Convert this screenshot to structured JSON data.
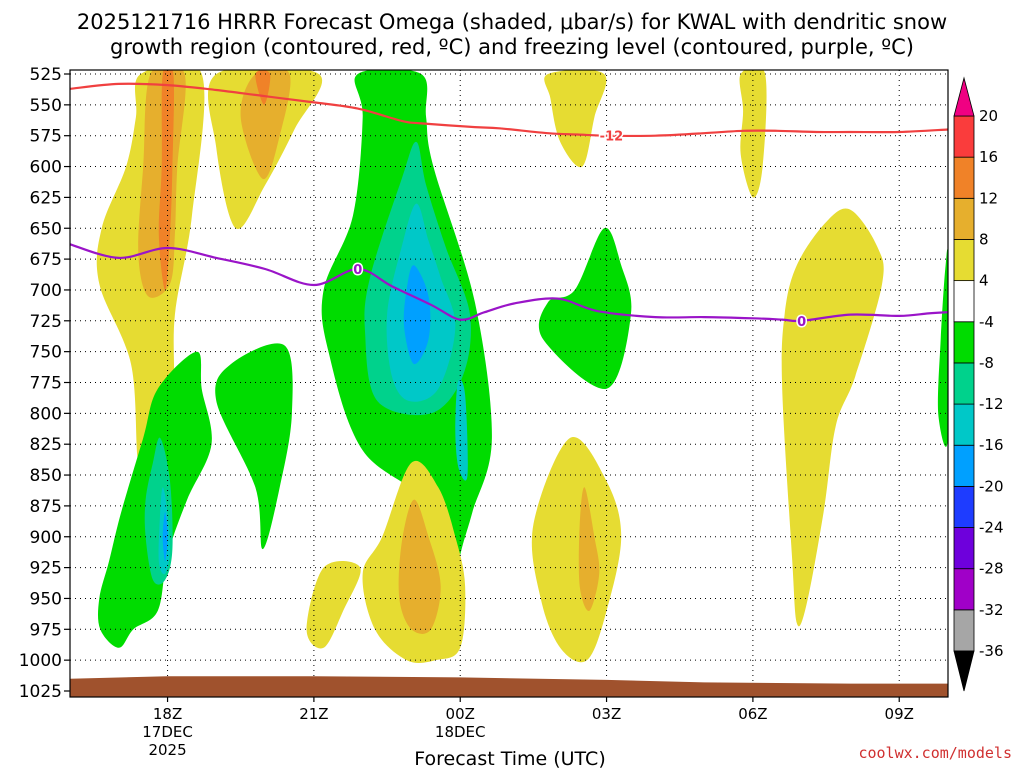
{
  "chart_data": {
    "type": "heatmap",
    "title_line1": "2025121716 HRRR Forecast Omega (shaded, μbar/s) for KWAL with dendritic snow",
    "title_line2": "growth region (contoured, red, ºC) and freezing level (contoured, purple, ºC)",
    "xlabel": "Forecast Time (UTC)",
    "credit": "coolwx.com/models",
    "xlim_hours": [
      0,
      18
    ],
    "ylim_hpa": [
      525,
      1025
    ],
    "y_ticks": [
      525,
      550,
      575,
      600,
      625,
      650,
      675,
      700,
      725,
      750,
      775,
      800,
      825,
      850,
      875,
      900,
      925,
      950,
      975,
      1000,
      1025
    ],
    "x_ticks": [
      {
        "hour": 2,
        "lines": [
          "18Z",
          "17DEC",
          "2025"
        ]
      },
      {
        "hour": 5,
        "lines": [
          "21Z"
        ]
      },
      {
        "hour": 8,
        "lines": [
          "00Z",
          "18DEC"
        ]
      },
      {
        "hour": 11,
        "lines": [
          "03Z"
        ]
      },
      {
        "hour": 14,
        "lines": [
          "06Z"
        ]
      },
      {
        "hour": 17,
        "lines": [
          "09Z"
        ]
      }
    ],
    "colorbar": {
      "levels": [
        -36,
        -32,
        -28,
        -24,
        -20,
        -16,
        -12,
        -8,
        -4,
        4,
        8,
        12,
        16,
        20
      ],
      "colors": [
        "#a6a6a6",
        "#a000c8",
        "#6e00dc",
        "#1e3cff",
        "#00a0ff",
        "#00c8c8",
        "#00d28c",
        "#00dc00",
        "#ffffff",
        "#e6dc32",
        "#e6af2d",
        "#f08228",
        "#fa3c3c",
        "#f00082"
      ],
      "under_color": "#000000",
      "over_color": "#f00082"
    },
    "omega_regions": [
      {
        "value": 4,
        "color": "#e6dc32",
        "points": [
          [
            1.45,
            525
          ],
          [
            2.7,
            525
          ],
          [
            2.5,
            640
          ],
          [
            2.15,
            720
          ],
          [
            2.1,
            790
          ],
          [
            1.65,
            835
          ],
          [
            1.4,
            840
          ],
          [
            1.25,
            760
          ],
          [
            0.6,
            695
          ],
          [
            0.65,
            650
          ],
          [
            1.15,
            600
          ],
          [
            1.35,
            560
          ]
        ]
      },
      {
        "value": 8,
        "color": "#e6af2d",
        "points": [
          [
            1.65,
            525
          ],
          [
            2.35,
            525
          ],
          [
            2.2,
            600
          ],
          [
            2.15,
            655
          ],
          [
            2.05,
            695
          ],
          [
            1.6,
            705
          ],
          [
            1.4,
            670
          ],
          [
            1.5,
            600
          ]
        ]
      },
      {
        "value": 12,
        "color": "#f08228",
        "points": [
          [
            1.9,
            525
          ],
          [
            2.12,
            525
          ],
          [
            2.1,
            600
          ],
          [
            2.05,
            655
          ],
          [
            1.95,
            700
          ],
          [
            1.82,
            655
          ],
          [
            1.88,
            600
          ]
        ]
      },
      {
        "value": 4,
        "color": "#e6dc32",
        "points": [
          [
            3.0,
            525
          ],
          [
            5.1,
            525
          ],
          [
            4.6,
            570
          ],
          [
            4.0,
            615
          ],
          [
            3.4,
            650
          ],
          [
            3.0,
            585
          ]
        ]
      },
      {
        "value": 8,
        "color": "#e6af2d",
        "points": [
          [
            3.8,
            525
          ],
          [
            4.5,
            525
          ],
          [
            4.3,
            575
          ],
          [
            3.95,
            610
          ],
          [
            3.5,
            560
          ]
        ]
      },
      {
        "value": 12,
        "color": "#f08228",
        "points": [
          [
            3.8,
            525
          ],
          [
            4.1,
            525
          ],
          [
            3.98,
            550
          ]
        ]
      },
      {
        "value": -4,
        "color": "#00dc00",
        "points": [
          [
            5.9,
            525
          ],
          [
            7.2,
            525
          ],
          [
            7.3,
            560
          ],
          [
            7.45,
            600
          ],
          [
            8.3,
            710
          ],
          [
            8.65,
            820
          ],
          [
            8.25,
            880
          ],
          [
            8.0,
            915
          ],
          [
            7.8,
            960
          ],
          [
            7.5,
            880
          ],
          [
            6.0,
            830
          ],
          [
            5.3,
            750
          ],
          [
            5.2,
            700
          ],
          [
            5.8,
            640
          ],
          [
            6.0,
            560
          ]
        ]
      },
      {
        "value": -8,
        "color": "#00d28c",
        "points": [
          [
            6.8,
            610
          ],
          [
            7.1,
            580
          ],
          [
            7.3,
            615
          ],
          [
            7.7,
            665
          ],
          [
            8.2,
            720
          ],
          [
            8.05,
            770
          ],
          [
            7.4,
            800
          ],
          [
            6.3,
            790
          ],
          [
            6.05,
            735
          ],
          [
            6.15,
            690
          ]
        ]
      },
      {
        "value": -12,
        "color": "#00c8c8",
        "points": [
          [
            7.1,
            630
          ],
          [
            7.35,
            660
          ],
          [
            7.6,
            690
          ],
          [
            7.9,
            730
          ],
          [
            7.55,
            780
          ],
          [
            6.95,
            790
          ],
          [
            6.6,
            770
          ],
          [
            6.5,
            720
          ],
          [
            6.8,
            665
          ]
        ]
      },
      {
        "value": -16,
        "color": "#00a0ff",
        "points": [
          [
            7.05,
            680
          ],
          [
            7.35,
            705
          ],
          [
            7.35,
            740
          ],
          [
            7.05,
            760
          ],
          [
            6.85,
            730
          ],
          [
            6.9,
            700
          ]
        ]
      },
      {
        "value": -12,
        "color": "#00c8c8",
        "points": [
          [
            7.95,
            775
          ],
          [
            8.1,
            785
          ],
          [
            8.15,
            850
          ],
          [
            7.97,
            845
          ],
          [
            7.9,
            815
          ]
        ]
      },
      {
        "value": -4,
        "color": "#00dc00",
        "points": [
          [
            1.8,
            780
          ],
          [
            2.6,
            750
          ],
          [
            2.7,
            780
          ],
          [
            2.9,
            825
          ],
          [
            2.4,
            870
          ],
          [
            2.0,
            915
          ],
          [
            1.8,
            960
          ],
          [
            1.3,
            975
          ],
          [
            1.0,
            990
          ],
          [
            0.62,
            975
          ],
          [
            0.6,
            950
          ],
          [
            0.8,
            920
          ],
          [
            1.05,
            880
          ],
          [
            1.5,
            820
          ]
        ]
      },
      {
        "value": -4,
        "color": "#00dc00",
        "points": [
          [
            3.3,
            760
          ],
          [
            4.4,
            745
          ],
          [
            4.55,
            800
          ],
          [
            4.3,
            860
          ],
          [
            3.95,
            910
          ],
          [
            3.8,
            860
          ],
          [
            3.0,
            790
          ]
        ]
      },
      {
        "value": -8,
        "color": "#00d28c",
        "points": [
          [
            1.7,
            840
          ],
          [
            1.85,
            820
          ],
          [
            2.05,
            855
          ],
          [
            2.1,
            910
          ],
          [
            1.95,
            935
          ],
          [
            1.7,
            935
          ],
          [
            1.55,
            900
          ],
          [
            1.55,
            870
          ]
        ]
      },
      {
        "value": -12,
        "color": "#00c8c8",
        "points": [
          [
            1.9,
            860
          ],
          [
            1.98,
            875
          ],
          [
            2.05,
            910
          ],
          [
            1.95,
            930
          ],
          [
            1.82,
            920
          ],
          [
            1.85,
            880
          ]
        ]
      },
      {
        "value": -16,
        "color": "#00a0ff",
        "points": [
          [
            1.95,
            880
          ],
          [
            2.0,
            900
          ],
          [
            1.95,
            920
          ],
          [
            1.9,
            900
          ]
        ]
      },
      {
        "value": 4,
        "color": "#e6dc32",
        "points": [
          [
            5.2,
            925
          ],
          [
            5.95,
            925
          ],
          [
            5.6,
            960
          ],
          [
            5.2,
            990
          ],
          [
            4.85,
            975
          ]
        ]
      },
      {
        "value": 4,
        "color": "#e6dc32",
        "points": [
          [
            7.0,
            840
          ],
          [
            7.55,
            860
          ],
          [
            7.9,
            900
          ],
          [
            8.1,
            940
          ],
          [
            8.0,
            990
          ],
          [
            7.5,
            1000
          ],
          [
            6.9,
            1000
          ],
          [
            6.25,
            975
          ],
          [
            6.0,
            930
          ],
          [
            6.4,
            900
          ]
        ]
      },
      {
        "value": 8,
        "color": "#e6af2d",
        "points": [
          [
            7.05,
            870
          ],
          [
            7.35,
            900
          ],
          [
            7.6,
            940
          ],
          [
            7.4,
            975
          ],
          [
            7.0,
            975
          ],
          [
            6.75,
            950
          ],
          [
            6.8,
            905
          ]
        ]
      },
      {
        "value": 4,
        "color": "#e6dc32",
        "points": [
          [
            10.25,
            820
          ],
          [
            11.0,
            855
          ],
          [
            11.3,
            900
          ],
          [
            11.0,
            960
          ],
          [
            10.6,
            1000
          ],
          [
            10.05,
            990
          ],
          [
            9.65,
            950
          ],
          [
            9.5,
            890
          ]
        ]
      },
      {
        "value": 8,
        "color": "#e6af2d",
        "points": [
          [
            10.55,
            860
          ],
          [
            10.75,
            900
          ],
          [
            10.85,
            930
          ],
          [
            10.65,
            960
          ],
          [
            10.45,
            940
          ],
          [
            10.45,
            890
          ]
        ]
      },
      {
        "value": 4,
        "color": "#e6dc32",
        "points": [
          [
            9.8,
            525
          ],
          [
            10.95,
            525
          ],
          [
            10.75,
            560
          ],
          [
            10.5,
            600
          ],
          [
            10.05,
            580
          ],
          [
            9.85,
            545
          ]
        ]
      },
      {
        "value": -4,
        "color": "#00dc00",
        "points": [
          [
            10.95,
            650
          ],
          [
            11.3,
            680
          ],
          [
            11.5,
            720
          ],
          [
            11.0,
            780
          ],
          [
            9.7,
            740
          ],
          [
            9.8,
            710
          ],
          [
            10.35,
            700
          ]
        ]
      },
      {
        "value": 4,
        "color": "#e6dc32",
        "points": [
          [
            13.75,
            525
          ],
          [
            14.25,
            525
          ],
          [
            14.2,
            600
          ],
          [
            14.0,
            625
          ],
          [
            13.75,
            590
          ],
          [
            13.8,
            555
          ]
        ]
      },
      {
        "value": 4,
        "color": "#e6dc32",
        "points": [
          [
            16.0,
            635
          ],
          [
            16.55,
            665
          ],
          [
            16.65,
            695
          ],
          [
            16.1,
            770
          ],
          [
            15.7,
            810
          ],
          [
            15.45,
            880
          ],
          [
            15.1,
            955
          ],
          [
            14.9,
            970
          ],
          [
            14.8,
            915
          ],
          [
            14.6,
            780
          ],
          [
            14.65,
            720
          ],
          [
            14.9,
            680
          ],
          [
            15.5,
            645
          ]
        ]
      },
      {
        "value": -4,
        "color": "#00dc00",
        "points": [
          [
            17.95,
            680
          ],
          [
            18.0,
            680
          ],
          [
            18.0,
            820
          ],
          [
            17.8,
            800
          ],
          [
            17.85,
            740
          ]
        ]
      }
    ],
    "dendritic_contour": {
      "label": "-12",
      "label_at": [
        11.1,
        575
      ],
      "color": "#f04040",
      "points": [
        [
          0,
          537
        ],
        [
          1,
          533
        ],
        [
          2,
          534
        ],
        [
          3,
          538
        ],
        [
          4,
          543
        ],
        [
          5,
          548
        ],
        [
          5.9,
          553
        ],
        [
          6.8,
          563
        ],
        [
          7.2,
          565
        ],
        [
          8.3,
          568
        ],
        [
          8.8,
          569
        ],
        [
          9.8,
          573
        ],
        [
          10.4,
          574
        ],
        [
          11,
          575
        ],
        [
          12,
          575
        ],
        [
          13,
          573
        ],
        [
          13.8,
          571
        ],
        [
          14.5,
          571
        ],
        [
          15.3,
          572
        ],
        [
          16,
          572
        ],
        [
          17,
          572
        ],
        [
          18,
          570
        ]
      ]
    },
    "freezing_contour": {
      "label": "0",
      "label_points": [
        [
          5.9,
          683
        ],
        [
          15.0,
          725
        ]
      ],
      "color": "#9a14c8",
      "points": [
        [
          0,
          663
        ],
        [
          1,
          674
        ],
        [
          2,
          666
        ],
        [
          3,
          674
        ],
        [
          4,
          683
        ],
        [
          5,
          696
        ],
        [
          5.9,
          683
        ],
        [
          6.6,
          697
        ],
        [
          7.4,
          712
        ],
        [
          8.0,
          724
        ],
        [
          8.5,
          718
        ],
        [
          9.1,
          711
        ],
        [
          10.0,
          707
        ],
        [
          10.8,
          717
        ],
        [
          12.0,
          722
        ],
        [
          13.0,
          722
        ],
        [
          14.0,
          723
        ],
        [
          14.6,
          724
        ],
        [
          15.0,
          725
        ],
        [
          16.0,
          720
        ],
        [
          17.0,
          721
        ],
        [
          17.6,
          719
        ],
        [
          18.0,
          718
        ]
      ]
    },
    "terrain": {
      "color": "#a0522d",
      "top_points": [
        [
          0,
          1015
        ],
        [
          2,
          1013
        ],
        [
          5,
          1013
        ],
        [
          8,
          1014
        ],
        [
          11,
          1016
        ],
        [
          13,
          1018
        ],
        [
          16,
          1019
        ],
        [
          18,
          1019
        ]
      ]
    }
  }
}
